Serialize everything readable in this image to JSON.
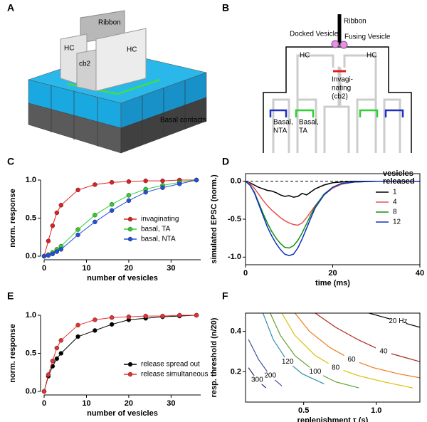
{
  "panels": [
    "A",
    "B",
    "C",
    "D",
    "E",
    "F"
  ],
  "diagram_a": {
    "ribbon": "Ribbon",
    "hc_left": "HC",
    "cb2": "cb2",
    "hc_right": "HC",
    "basal": "Basal contacts"
  },
  "diagram_b": {
    "ribbon": "Ribbon",
    "docked": "Docked Vesicle",
    "fusing": "Fusing Vesicle",
    "hc_left": "HC",
    "hc_right": "HC",
    "invaginating": [
      "Invagi-",
      "nating",
      "(cb2)"
    ],
    "basal_nta": [
      "Basal,",
      "NTA"
    ],
    "basal_ta": [
      "Basal,",
      "TA"
    ]
  },
  "chart_data": [
    {
      "type": "line",
      "markers": true,
      "frame": "axes",
      "xlabel": "number of vesicles",
      "ylabel": "norm. response",
      "x": [
        0,
        1,
        2,
        3,
        4,
        8,
        12,
        16,
        20,
        24,
        28,
        32,
        36
      ],
      "series": [
        {
          "name": "invaginating",
          "color": "#e02020",
          "values": [
            0,
            0.2,
            0.4,
            0.57,
            0.67,
            0.87,
            0.94,
            0.97,
            0.98,
            0.99,
            0.99,
            1.0,
            1.0
          ]
        },
        {
          "name": "basal, TA",
          "color": "#30d030",
          "values": [
            0,
            0.02,
            0.05,
            0.09,
            0.13,
            0.35,
            0.54,
            0.68,
            0.8,
            0.88,
            0.93,
            0.97,
            1.0
          ]
        },
        {
          "name": "basal, NTA",
          "color": "#2050e0",
          "values": [
            0,
            0.01,
            0.03,
            0.06,
            0.09,
            0.28,
            0.45,
            0.6,
            0.73,
            0.84,
            0.9,
            0.95,
            1.0
          ]
        }
      ],
      "xlim": [
        0,
        37
      ],
      "xticks": [
        0,
        10,
        20,
        30
      ],
      "ylim": [
        0,
        1
      ],
      "yticks": [
        {
          "value": 0,
          "label": "0.0"
        },
        {
          "value": 0.5,
          "label": "0.5"
        },
        {
          "value": 1,
          "label": "1.0"
        }
      ],
      "legend": "lower right"
    },
    {
      "type": "line",
      "markers": false,
      "frame": "box",
      "xlabel": "time (ms)",
      "ylabel": "simulated EPSC (norm.)",
      "legend_title": [
        "vesicles",
        "released"
      ],
      "hline": 0,
      "x": [
        0,
        1,
        2,
        3,
        4,
        5,
        6,
        7,
        8,
        9,
        10,
        11,
        12,
        13,
        14,
        15,
        16,
        18,
        20,
        22,
        25,
        30,
        35,
        40
      ],
      "series": [
        {
          "name": "1",
          "color": "#000000",
          "values": [
            0,
            -0.02,
            -0.05,
            -0.08,
            -0.1,
            -0.12,
            -0.13,
            -0.15,
            -0.18,
            -0.2,
            -0.19,
            -0.21,
            -0.2,
            -0.16,
            -0.18,
            -0.14,
            -0.1,
            -0.05,
            -0.02,
            -0.01,
            0,
            0,
            0,
            0
          ]
        },
        {
          "name": "4",
          "color": "#e85050",
          "values": [
            0,
            -0.03,
            -0.09,
            -0.17,
            -0.25,
            -0.32,
            -0.38,
            -0.43,
            -0.48,
            -0.52,
            -0.55,
            -0.57,
            -0.58,
            -0.55,
            -0.48,
            -0.4,
            -0.32,
            -0.18,
            -0.09,
            -0.04,
            -0.01,
            0,
            0,
            0
          ]
        },
        {
          "name": "8",
          "color": "#109010",
          "values": [
            0,
            -0.05,
            -0.14,
            -0.28,
            -0.42,
            -0.55,
            -0.66,
            -0.75,
            -0.82,
            -0.87,
            -0.88,
            -0.85,
            -0.78,
            -0.68,
            -0.56,
            -0.44,
            -0.33,
            -0.17,
            -0.08,
            -0.03,
            -0.01,
            0,
            0,
            0
          ]
        },
        {
          "name": "12",
          "color": "#1030c0",
          "values": [
            0,
            -0.05,
            -0.15,
            -0.3,
            -0.45,
            -0.6,
            -0.72,
            -0.82,
            -0.9,
            -0.96,
            -0.98,
            -0.96,
            -0.88,
            -0.76,
            -0.62,
            -0.48,
            -0.35,
            -0.18,
            -0.08,
            -0.03,
            -0.01,
            0,
            0,
            0
          ]
        }
      ],
      "xlim": [
        0,
        40
      ],
      "xticks": [
        0,
        20,
        40
      ],
      "ylim": [
        -1.1,
        0.1
      ],
      "yticks": [
        {
          "value": -1,
          "label": "-1.0"
        },
        {
          "value": -0.5,
          "label": "-0.5"
        },
        {
          "value": 0,
          "label": "0.0"
        }
      ],
      "legend": "right"
    },
    {
      "type": "line",
      "markers": true,
      "frame": "axes",
      "xlabel": "number of vesicles",
      "ylabel": "norm. response",
      "x": [
        0,
        1,
        2,
        3,
        4,
        8,
        12,
        16,
        20,
        24,
        28,
        32,
        36
      ],
      "series": [
        {
          "name": "release spread out",
          "color": "#000000",
          "values": [
            0,
            0.2,
            0.33,
            0.43,
            0.5,
            0.72,
            0.8,
            0.88,
            0.94,
            0.96,
            0.98,
            0.99,
            1.0
          ]
        },
        {
          "name": "release simultaneous",
          "color": "#e83030",
          "values": [
            0,
            0.22,
            0.4,
            0.57,
            0.67,
            0.87,
            0.94,
            0.97,
            0.98,
            0.99,
            0.99,
            1.0,
            1.0
          ]
        }
      ],
      "xlim": [
        0,
        37
      ],
      "xticks": [
        0,
        10,
        20,
        30
      ],
      "ylim": [
        0,
        1
      ],
      "yticks": [
        {
          "value": 0,
          "label": "0.0"
        },
        {
          "value": 0.5,
          "label": "0.5"
        },
        {
          "value": 1,
          "label": "1.0"
        }
      ],
      "legend": "lower right"
    },
    {
      "type": "contour",
      "frame": "box",
      "xlabel": "replenishment τ (s)",
      "ylabel": "resp. threshold (n/20)",
      "series": [
        {
          "name": "20 Hz",
          "color": "#000000",
          "x": [
            0.95,
            1.05,
            1.15,
            1.3
          ],
          "values": [
            0.49,
            0.47,
            0.45,
            0.42
          ]
        },
        {
          "name": "40",
          "color": "#b02818",
          "x": [
            0.58,
            0.72,
            0.87,
            1.05,
            1.2,
            1.3
          ],
          "values": [
            0.49,
            0.42,
            0.36,
            0.3,
            0.27,
            0.25
          ]
        },
        {
          "name": "60",
          "color": "#f07818",
          "x": [
            0.44,
            0.54,
            0.68,
            0.83,
            0.98,
            1.15,
            1.3
          ],
          "values": [
            0.49,
            0.4,
            0.32,
            0.26,
            0.22,
            0.19,
            0.17
          ]
        },
        {
          "name": "80",
          "color": "#d8c000",
          "x": [
            0.35,
            0.44,
            0.58,
            0.72,
            0.88,
            1.05,
            1.25
          ],
          "values": [
            0.49,
            0.38,
            0.28,
            0.22,
            0.18,
            0.15,
            0.12
          ]
        },
        {
          "name": "100",
          "color": "#60a030",
          "x": [
            0.27,
            0.34,
            0.44,
            0.58,
            0.72,
            0.88
          ],
          "values": [
            0.49,
            0.38,
            0.28,
            0.2,
            0.15,
            0.12
          ]
        },
        {
          "name": "120",
          "color": "#3090b0",
          "x": [
            0.22,
            0.29,
            0.39,
            0.49,
            0.64
          ],
          "values": [
            0.49,
            0.36,
            0.25,
            0.19,
            0.14
          ]
        },
        {
          "name": "200",
          "color": "#4050a0",
          "x": [
            0.12,
            0.19,
            0.27,
            0.35
          ],
          "values": [
            0.36,
            0.26,
            0.18,
            0.13
          ]
        },
        {
          "name": "300",
          "color": "#302060",
          "x": [
            0.12,
            0.18,
            0.24
          ],
          "values": [
            0.22,
            0.16,
            0.12
          ]
        }
      ],
      "xlim": [
        0.1,
        1.3
      ],
      "xticks": [
        0.5,
        {
          "value": 1,
          "label": "1.0"
        }
      ],
      "ylim": [
        0.05,
        0.49
      ],
      "yticks": [
        0.2,
        0.4
      ]
    }
  ]
}
